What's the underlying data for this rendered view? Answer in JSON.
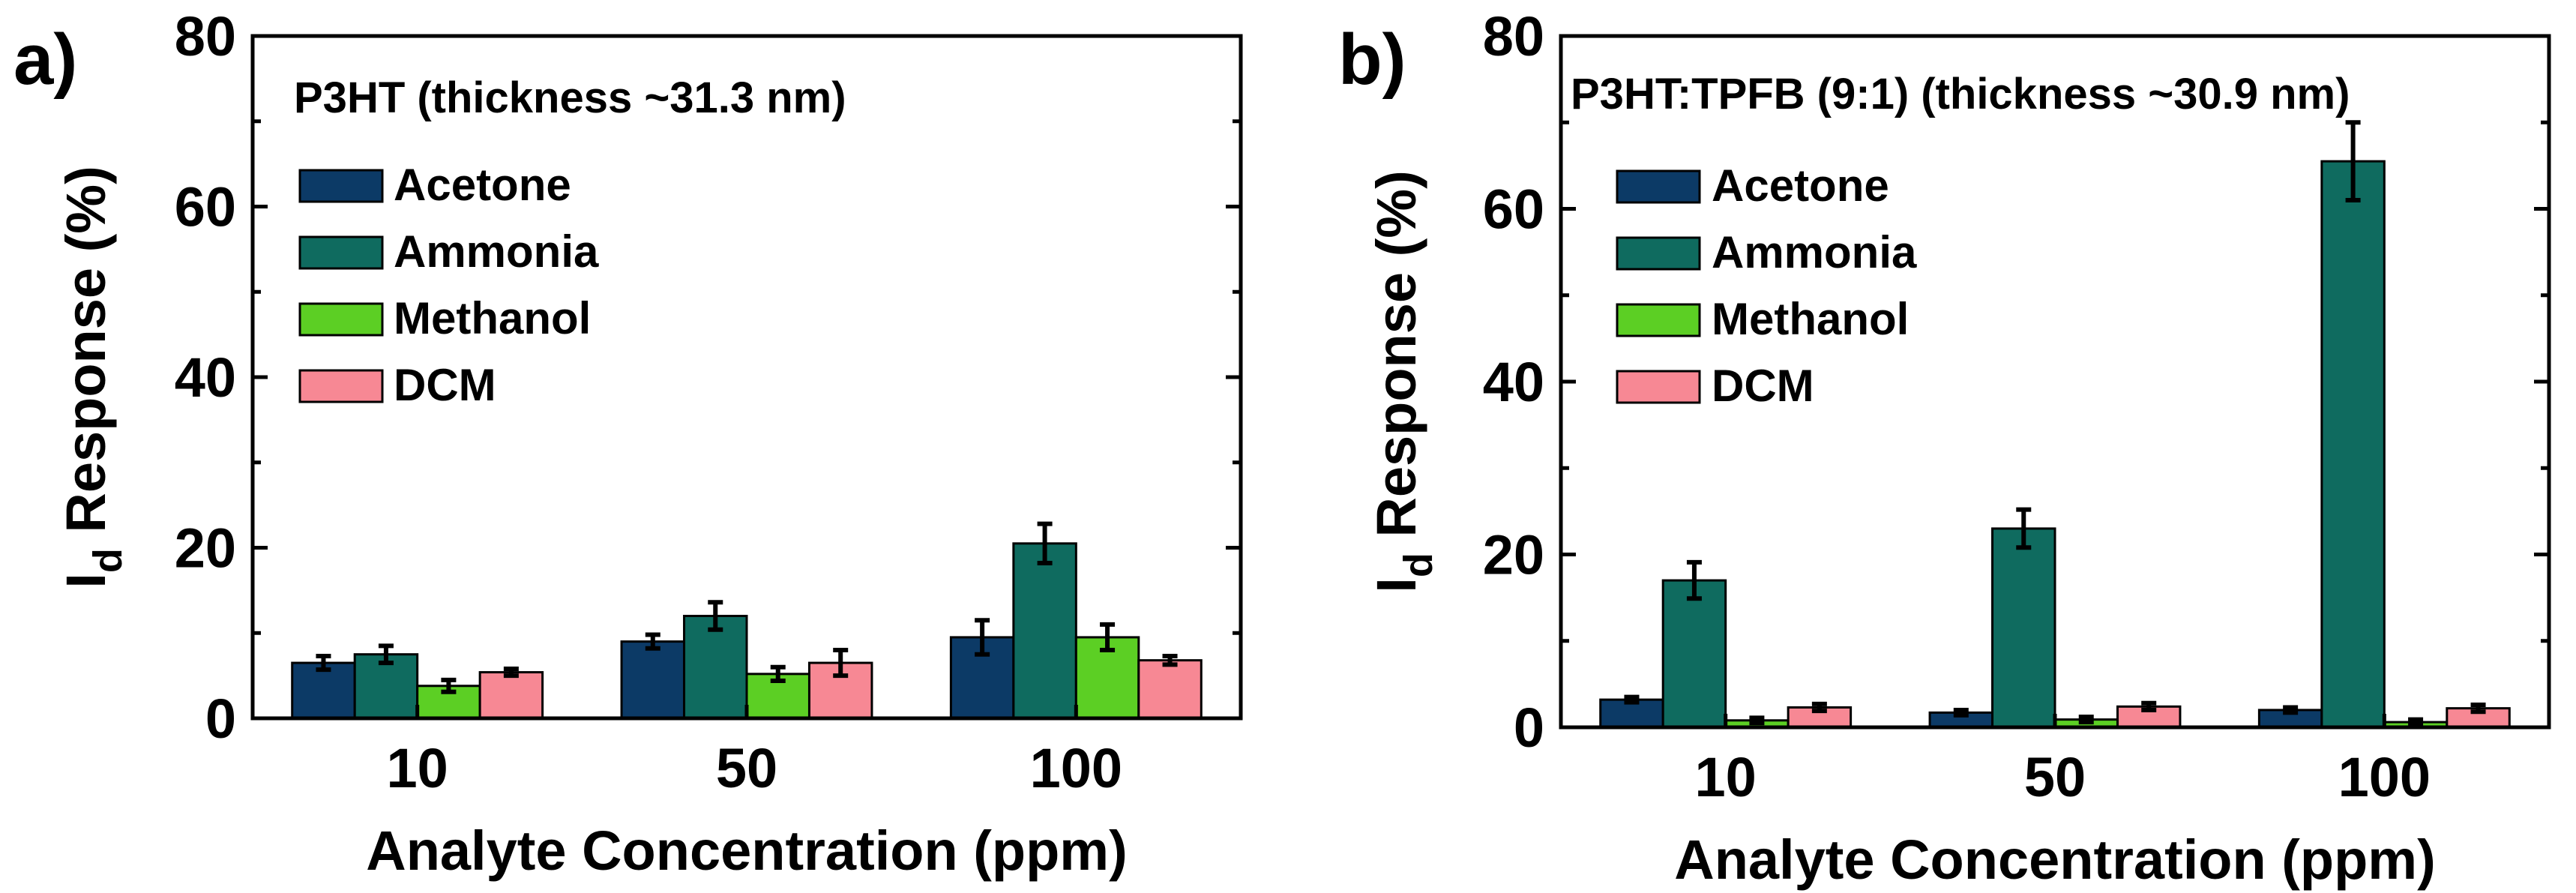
{
  "chart_data": [
    {
      "type": "bar",
      "panel_label": "a)",
      "title": "P3HT (thickness ~31.3 nm)",
      "xlabel": "Analyte Concentration (ppm)",
      "ylabel_main": "I",
      "ylabel_sub": "d",
      "ylabel_rest": " Response (%)",
      "ylim": [
        0,
        80
      ],
      "yticks": [
        0,
        20,
        40,
        60,
        80
      ],
      "categories": [
        "10",
        "50",
        "100"
      ],
      "series": [
        {
          "name": "Acetone",
          "color": "#0c3a66",
          "values": [
            6.5,
            9.0,
            9.5
          ],
          "errors": [
            0.8,
            0.8,
            2.0
          ]
        },
        {
          "name": "Ammonia",
          "color": "#0f6b5f",
          "values": [
            7.5,
            12.0,
            20.5
          ],
          "errors": [
            1.0,
            1.6,
            2.3
          ]
        },
        {
          "name": "Methanol",
          "color": "#5ccf24",
          "values": [
            3.8,
            5.2,
            9.5
          ],
          "errors": [
            0.7,
            0.8,
            1.5
          ]
        },
        {
          "name": "DCM",
          "color": "#f78894",
          "values": [
            5.4,
            6.5,
            6.8
          ],
          "errors": [
            0.4,
            1.5,
            0.5
          ]
        }
      ]
    },
    {
      "type": "bar",
      "panel_label": "b)",
      "title": "P3HT:TPFB (9:1) (thickness ~30.9 nm)",
      "xlabel": "Analyte Concentration (ppm)",
      "ylabel_main": "I",
      "ylabel_sub": "d",
      "ylabel_rest": " Response (%)",
      "ylim": [
        0,
        80
      ],
      "yticks": [
        0,
        20,
        40,
        60,
        80
      ],
      "categories": [
        "10",
        "50",
        "100"
      ],
      "series": [
        {
          "name": "Acetone",
          "color": "#0c3a66",
          "values": [
            3.2,
            1.7,
            2.0
          ],
          "errors": [
            0.3,
            0.3,
            0.3
          ]
        },
        {
          "name": "Ammonia",
          "color": "#0f6b5f",
          "values": [
            17.0,
            23.0,
            65.5
          ],
          "errors": [
            2.1,
            2.2,
            4.5
          ]
        },
        {
          "name": "Methanol",
          "color": "#5ccf24",
          "values": [
            0.8,
            0.9,
            0.6
          ],
          "errors": [
            0.3,
            0.3,
            0.3
          ]
        },
        {
          "name": "DCM",
          "color": "#f78894",
          "values": [
            2.3,
            2.4,
            2.2
          ],
          "errors": [
            0.4,
            0.4,
            0.4
          ]
        }
      ]
    }
  ]
}
